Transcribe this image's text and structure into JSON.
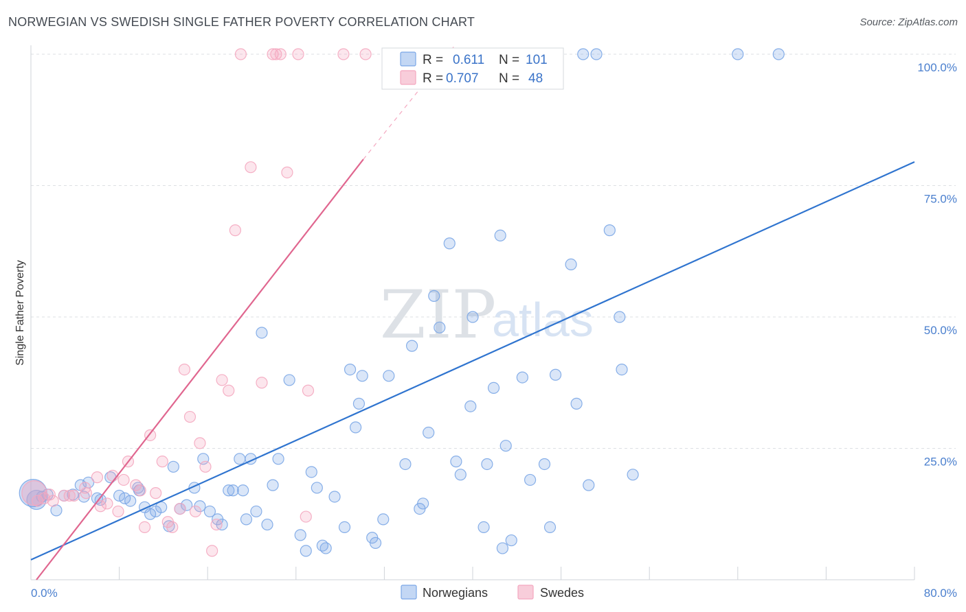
{
  "header": {
    "title": "NORWEGIAN VS SWEDISH SINGLE FATHER POVERTY CORRELATION CHART",
    "source": "Source: ZipAtlas.com"
  },
  "watermark": {
    "zip": "ZIP",
    "atlas": "atlas"
  },
  "stats": {
    "r_label": "R =",
    "n_label": "N =",
    "rows": [
      {
        "series": "Norwegians",
        "r": "0.611",
        "n": "101",
        "color": "#a9c6ef"
      },
      {
        "series": "Swedes",
        "r": "0.707",
        "n": "48",
        "color": "#f5b8cb"
      }
    ]
  },
  "chart_data": {
    "type": "scatter",
    "title": "NORWEGIAN VS SWEDISH SINGLE FATHER POVERTY CORRELATION CHART",
    "xlabel": "",
    "ylabel": "Single Father Poverty",
    "xlim": [
      0,
      80
    ],
    "ylim": [
      0,
      100
    ],
    "x_tick_labels": [
      "0.0%",
      "80.0%"
    ],
    "y_ticks": [
      25,
      50,
      75,
      100
    ],
    "y_tick_labels": [
      "25.0%",
      "50.0%",
      "75.0%",
      "100.0%"
    ],
    "grid": true,
    "legend_position": "bottom-center",
    "series": [
      {
        "name": "Norwegians",
        "color": "#7aa6e6",
        "line_color": "#2f74cf",
        "trend": {
          "x": [
            0,
            80
          ],
          "y": [
            3.8,
            79.5
          ]
        },
        "points": [
          [
            0.2,
            16.5
          ],
          [
            0.5,
            15.2
          ],
          [
            1.0,
            15.8
          ],
          [
            1.5,
            16.2
          ],
          [
            2.3,
            13.2
          ],
          [
            3.0,
            16.0
          ],
          [
            3.8,
            16.2
          ],
          [
            4.5,
            18.0
          ],
          [
            4.8,
            15.8
          ],
          [
            5.2,
            18.5
          ],
          [
            6.0,
            15.5
          ],
          [
            6.3,
            15.2
          ],
          [
            7.2,
            19.5
          ],
          [
            8.0,
            16.0
          ],
          [
            8.5,
            15.5
          ],
          [
            9.0,
            15.0
          ],
          [
            9.8,
            17.0
          ],
          [
            10.3,
            13.8
          ],
          [
            10.8,
            12.5
          ],
          [
            11.3,
            13.0
          ],
          [
            11.8,
            13.8
          ],
          [
            12.5,
            10.2
          ],
          [
            12.9,
            21.5
          ],
          [
            13.5,
            13.5
          ],
          [
            14.1,
            14.2
          ],
          [
            14.8,
            17.5
          ],
          [
            15.3,
            14.0
          ],
          [
            15.6,
            23.0
          ],
          [
            16.2,
            13.0
          ],
          [
            16.9,
            11.5
          ],
          [
            17.3,
            10.5
          ],
          [
            17.9,
            17.0
          ],
          [
            18.3,
            17.0
          ],
          [
            18.9,
            23.0
          ],
          [
            19.5,
            11.5
          ],
          [
            19.9,
            23.0
          ],
          [
            20.4,
            13.0
          ],
          [
            20.9,
            47.0
          ],
          [
            21.4,
            10.5
          ],
          [
            21.9,
            18.0
          ],
          [
            22.4,
            23.0
          ],
          [
            23.4,
            38.0
          ],
          [
            24.4,
            8.5
          ],
          [
            24.9,
            5.5
          ],
          [
            25.4,
            20.5
          ],
          [
            25.9,
            17.5
          ],
          [
            26.4,
            6.5
          ],
          [
            26.7,
            6.0
          ],
          [
            27.5,
            15.8
          ],
          [
            28.4,
            10.0
          ],
          [
            28.9,
            40.0
          ],
          [
            29.4,
            29.0
          ],
          [
            29.7,
            33.5
          ],
          [
            30.0,
            38.8
          ],
          [
            30.9,
            8.0
          ],
          [
            31.2,
            7.0
          ],
          [
            31.9,
            11.5
          ],
          [
            32.4,
            38.8
          ],
          [
            33.9,
            22.0
          ],
          [
            34.5,
            44.5
          ],
          [
            35.2,
            13.5
          ],
          [
            35.5,
            14.5
          ],
          [
            36.0,
            28.0
          ],
          [
            36.5,
            54.0
          ],
          [
            37.0,
            48.0
          ],
          [
            37.9,
            64.0
          ],
          [
            38.5,
            22.5
          ],
          [
            38.9,
            20.0
          ],
          [
            39.8,
            33.0
          ],
          [
            40.0,
            50.0
          ],
          [
            41.0,
            10.0
          ],
          [
            41.3,
            22.0
          ],
          [
            41.9,
            36.5
          ],
          [
            42.5,
            65.5
          ],
          [
            42.7,
            6.0
          ],
          [
            43.0,
            25.5
          ],
          [
            43.5,
            7.5
          ],
          [
            44.5,
            38.5
          ],
          [
            45.2,
            19.0
          ],
          [
            46.5,
            22.0
          ],
          [
            47.0,
            10.0
          ],
          [
            47.5,
            39.0
          ],
          [
            48.9,
            60.0
          ],
          [
            49.4,
            33.5
          ],
          [
            50.5,
            18.0
          ],
          [
            52.4,
            66.5
          ],
          [
            53.3,
            50.0
          ],
          [
            53.5,
            40.0
          ],
          [
            54.5,
            20.0
          ],
          [
            38.2,
            100
          ],
          [
            40.3,
            100
          ],
          [
            42.2,
            100
          ],
          [
            44.5,
            100
          ],
          [
            46.5,
            100
          ],
          [
            47.5,
            100
          ],
          [
            50.0,
            100
          ],
          [
            51.2,
            100
          ],
          [
            64.0,
            100
          ],
          [
            67.7,
            100
          ],
          [
            9.7,
            17.5
          ],
          [
            19.2,
            17.0
          ],
          [
            33.0,
            100
          ]
        ],
        "point_sizes": {
          "0": 20,
          "1": 14
        }
      },
      {
        "name": "Swedes",
        "color": "#f4a7bf",
        "line_color": "#e0668f",
        "trend": {
          "x": [
            0.5,
            30.1
          ],
          "y": [
            0,
            80.0
          ]
        },
        "trend_extension": {
          "x": [
            30.1,
            38.5
          ],
          "y": [
            80.0,
            102.0
          ]
        },
        "points": [
          [
            0.3,
            16.5
          ],
          [
            0.6,
            15.0
          ],
          [
            1.2,
            15.5
          ],
          [
            2.0,
            15.0
          ],
          [
            3.0,
            16.0
          ],
          [
            3.9,
            16.0
          ],
          [
            4.9,
            17.5
          ],
          [
            6.0,
            19.5
          ],
          [
            6.3,
            14.0
          ],
          [
            6.9,
            14.5
          ],
          [
            7.4,
            19.8
          ],
          [
            7.9,
            13.0
          ],
          [
            8.4,
            19.0
          ],
          [
            8.8,
            22.5
          ],
          [
            9.5,
            18.0
          ],
          [
            9.9,
            17.0
          ],
          [
            10.3,
            10.0
          ],
          [
            10.8,
            27.5
          ],
          [
            11.3,
            16.5
          ],
          [
            11.9,
            22.5
          ],
          [
            12.4,
            11.0
          ],
          [
            12.8,
            10.0
          ],
          [
            13.5,
            13.5
          ],
          [
            13.9,
            40.0
          ],
          [
            14.4,
            31.0
          ],
          [
            14.9,
            13.0
          ],
          [
            15.3,
            26.0
          ],
          [
            15.8,
            21.5
          ],
          [
            16.4,
            5.5
          ],
          [
            16.8,
            10.5
          ],
          [
            17.3,
            38.0
          ],
          [
            17.9,
            36.0
          ],
          [
            18.5,
            66.5
          ],
          [
            19.0,
            100
          ],
          [
            19.9,
            78.5
          ],
          [
            20.9,
            37.5
          ],
          [
            21.9,
            100
          ],
          [
            22.2,
            100
          ],
          [
            22.6,
            100
          ],
          [
            23.2,
            77.5
          ],
          [
            24.2,
            100
          ],
          [
            24.9,
            12.0
          ],
          [
            25.1,
            36.0
          ],
          [
            28.3,
            100
          ],
          [
            30.3,
            100
          ],
          [
            3.5,
            16.0
          ],
          [
            5.0,
            16.5
          ],
          [
            1.7,
            16.2
          ]
        ],
        "point_sizes": {
          "0": 18
        }
      }
    ]
  }
}
